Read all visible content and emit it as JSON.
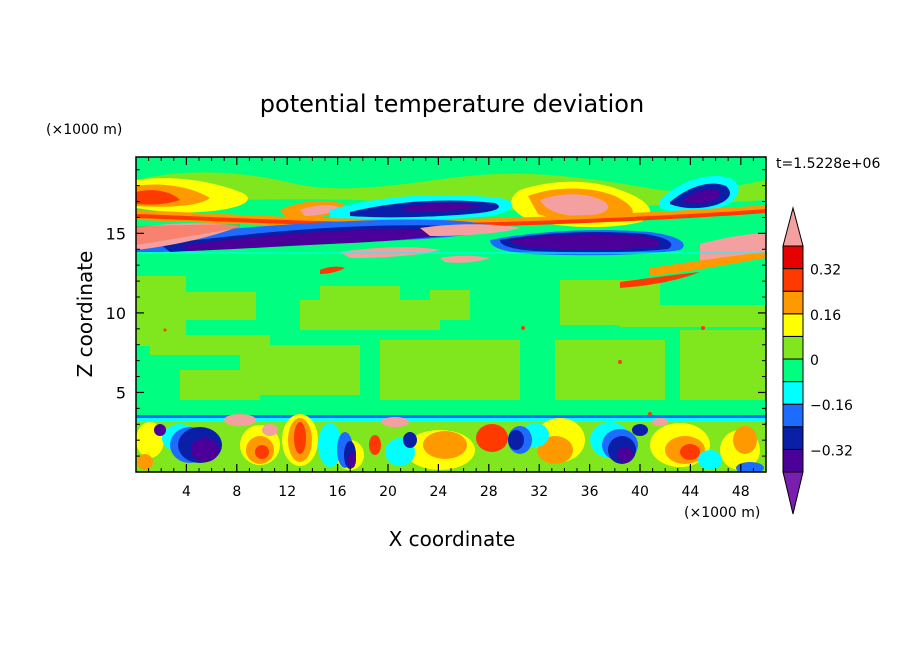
{
  "chart_data": {
    "type": "heatmap",
    "title": "potential temperature deviation",
    "xlabel": "X coordinate",
    "ylabel": "Z coordinate",
    "x_unit": "(×1000 m)",
    "y_unit": "(×1000 m)",
    "time_label": "t=1.5228e+06",
    "xlim": [
      0,
      50
    ],
    "ylim": [
      0,
      19.8
    ],
    "x_ticks": [
      4,
      8,
      12,
      16,
      20,
      24,
      28,
      32,
      36,
      40,
      44,
      48
    ],
    "y_ticks": [
      5,
      10,
      15
    ],
    "colorbar": {
      "levels": [
        -0.4,
        -0.32,
        -0.24,
        -0.16,
        -0.08,
        0,
        0.08,
        0.16,
        0.24,
        0.32,
        0.4
      ],
      "labels": [
        "0.32",
        "0.16",
        "0",
        "−0.16",
        "−0.32"
      ],
      "label_values": [
        0.32,
        0.16,
        0,
        -0.16,
        -0.32
      ],
      "colors_low_to_high": [
        "#7a1eb0",
        "#4a0099",
        "#0a1ea8",
        "#1e6cff",
        "#00ffff",
        "#00ff80",
        "#80e61e",
        "#ffff00",
        "#ff9900",
        "#ff3a00",
        "#e60000",
        "#f5a0a0"
      ]
    },
    "bands": [
      {
        "z": [
          0,
          3.5
        ],
        "description": "turbulent mixed layer"
      },
      {
        "z": [
          3.5,
          13.5
        ],
        "description": "near-zero interior"
      },
      {
        "z": [
          13.5,
          19.8
        ],
        "description": "layered upper structure"
      }
    ]
  }
}
